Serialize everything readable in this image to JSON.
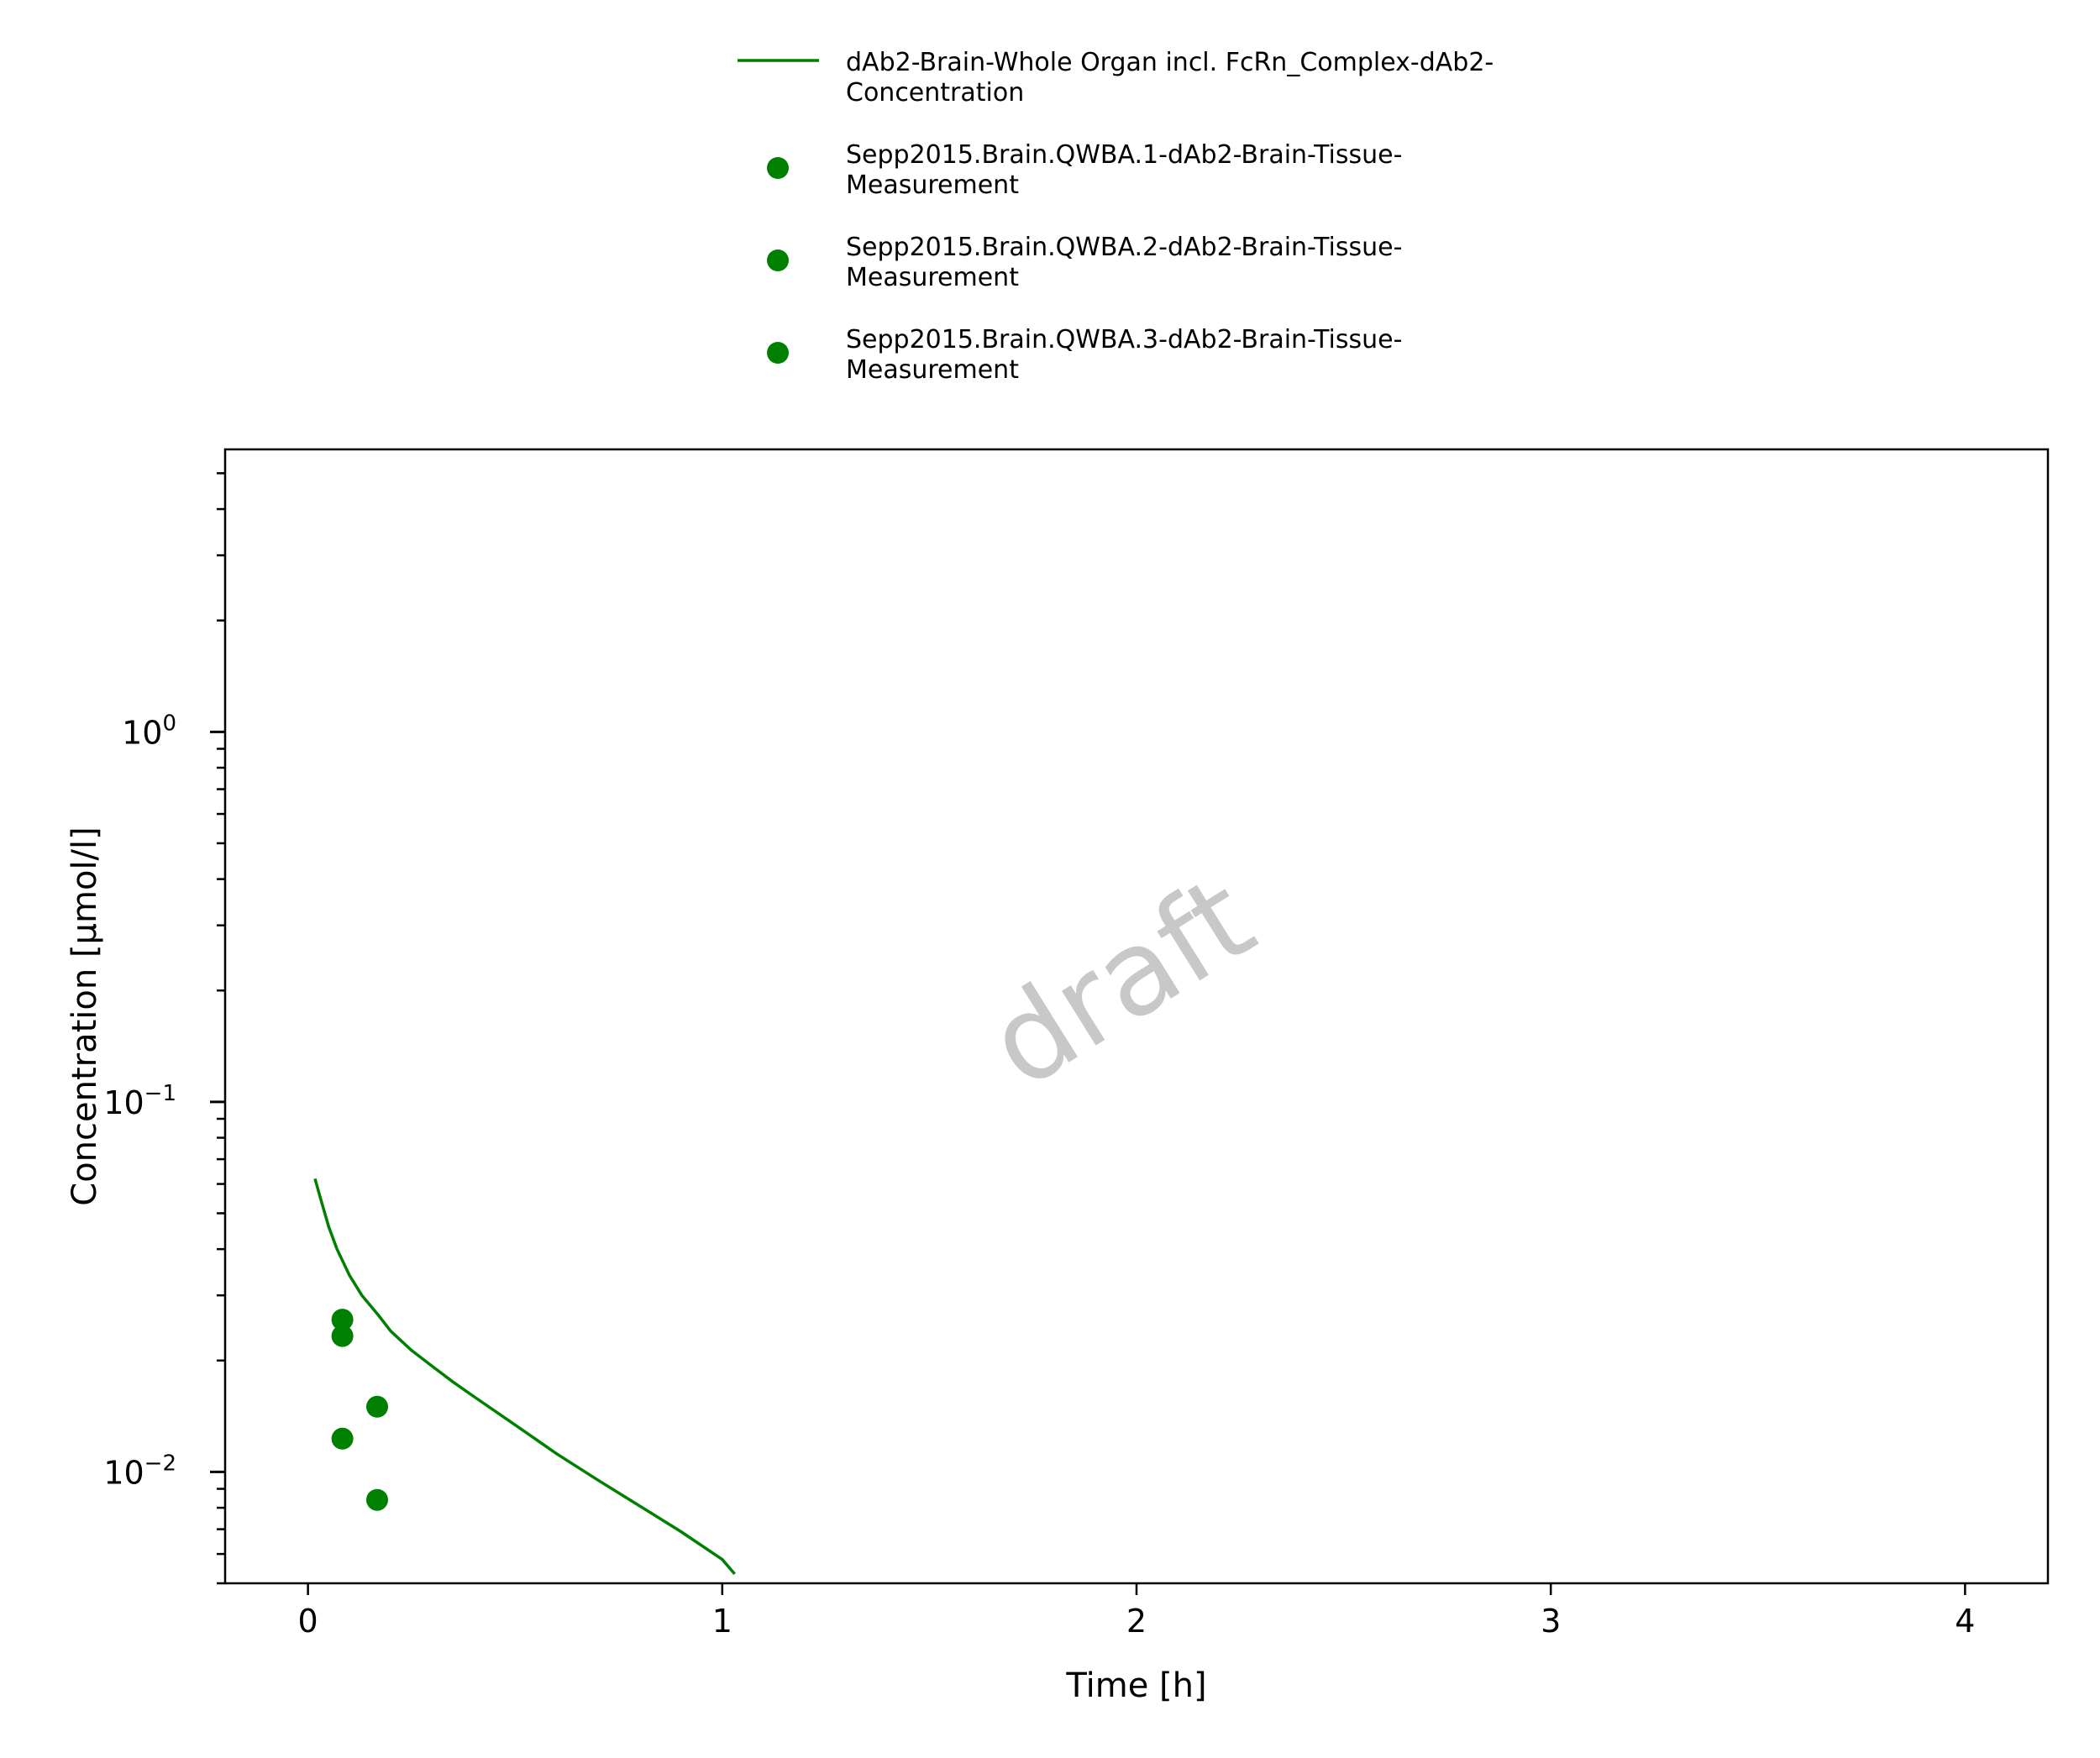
{
  "chart_data": {
    "type": "line",
    "title": "",
    "xlabel": "Time [h]",
    "ylabel": "Concentration [µmol/l]",
    "xlim": [
      -0.2,
      4.2
    ],
    "ylim": [
      0.005,
      5.8
    ],
    "yscale": "log",
    "x_ticks": [
      0,
      1,
      2,
      3,
      4
    ],
    "x_tick_labels": [
      "0",
      "1",
      "2",
      "3",
      "4"
    ],
    "y_ticks": [
      {
        "value": 1,
        "base": "10",
        "exp": "0"
      },
      {
        "value": 0.1,
        "base": "10",
        "exp": "−1"
      },
      {
        "value": 0.01,
        "base": "10",
        "exp": "−2"
      }
    ],
    "legend_position": "top-center",
    "watermark": "draft",
    "series": [
      {
        "name_lines": [
          "dAb2-Brain-Whole Organ incl. FcRn_Complex-dAb2-",
          "Concentration"
        ],
        "kind": "line",
        "color": "#008000",
        "x": [
          0.017,
          0.03,
          0.05,
          0.07,
          0.1,
          0.13,
          0.17,
          0.2,
          0.25,
          0.3,
          0.35,
          0.4,
          0.5,
          0.6,
          0.7,
          0.8,
          0.9,
          1.0,
          1.03
        ],
        "y": [
          0.062,
          0.055,
          0.046,
          0.04,
          0.034,
          0.03,
          0.0265,
          0.024,
          0.0213,
          0.0193,
          0.0175,
          0.016,
          0.0134,
          0.0112,
          0.0095,
          0.0081,
          0.0069,
          0.0058,
          0.0053
        ]
      },
      {
        "name_lines": [
          "Sepp2015.Brain.QWBA.1-dAb2-Brain-Tissue-",
          "Measurement"
        ],
        "kind": "scatter",
        "color": "#008000",
        "x": [
          0.083,
          0.167
        ],
        "y": [
          0.0258,
          0.015
        ]
      },
      {
        "name_lines": [
          "Sepp2015.Brain.QWBA.2-dAb2-Brain-Tissue-",
          "Measurement"
        ],
        "kind": "scatter",
        "color": "#008000",
        "x": [
          0.083
        ],
        "y": [
          0.0233
        ]
      },
      {
        "name_lines": [
          "Sepp2015.Brain.QWBA.3-dAb2-Brain-Tissue-",
          "Measurement"
        ],
        "kind": "scatter",
        "color": "#008000",
        "x": [
          0.083,
          0.167
        ],
        "y": [
          0.0123,
          0.0084
        ]
      }
    ]
  }
}
